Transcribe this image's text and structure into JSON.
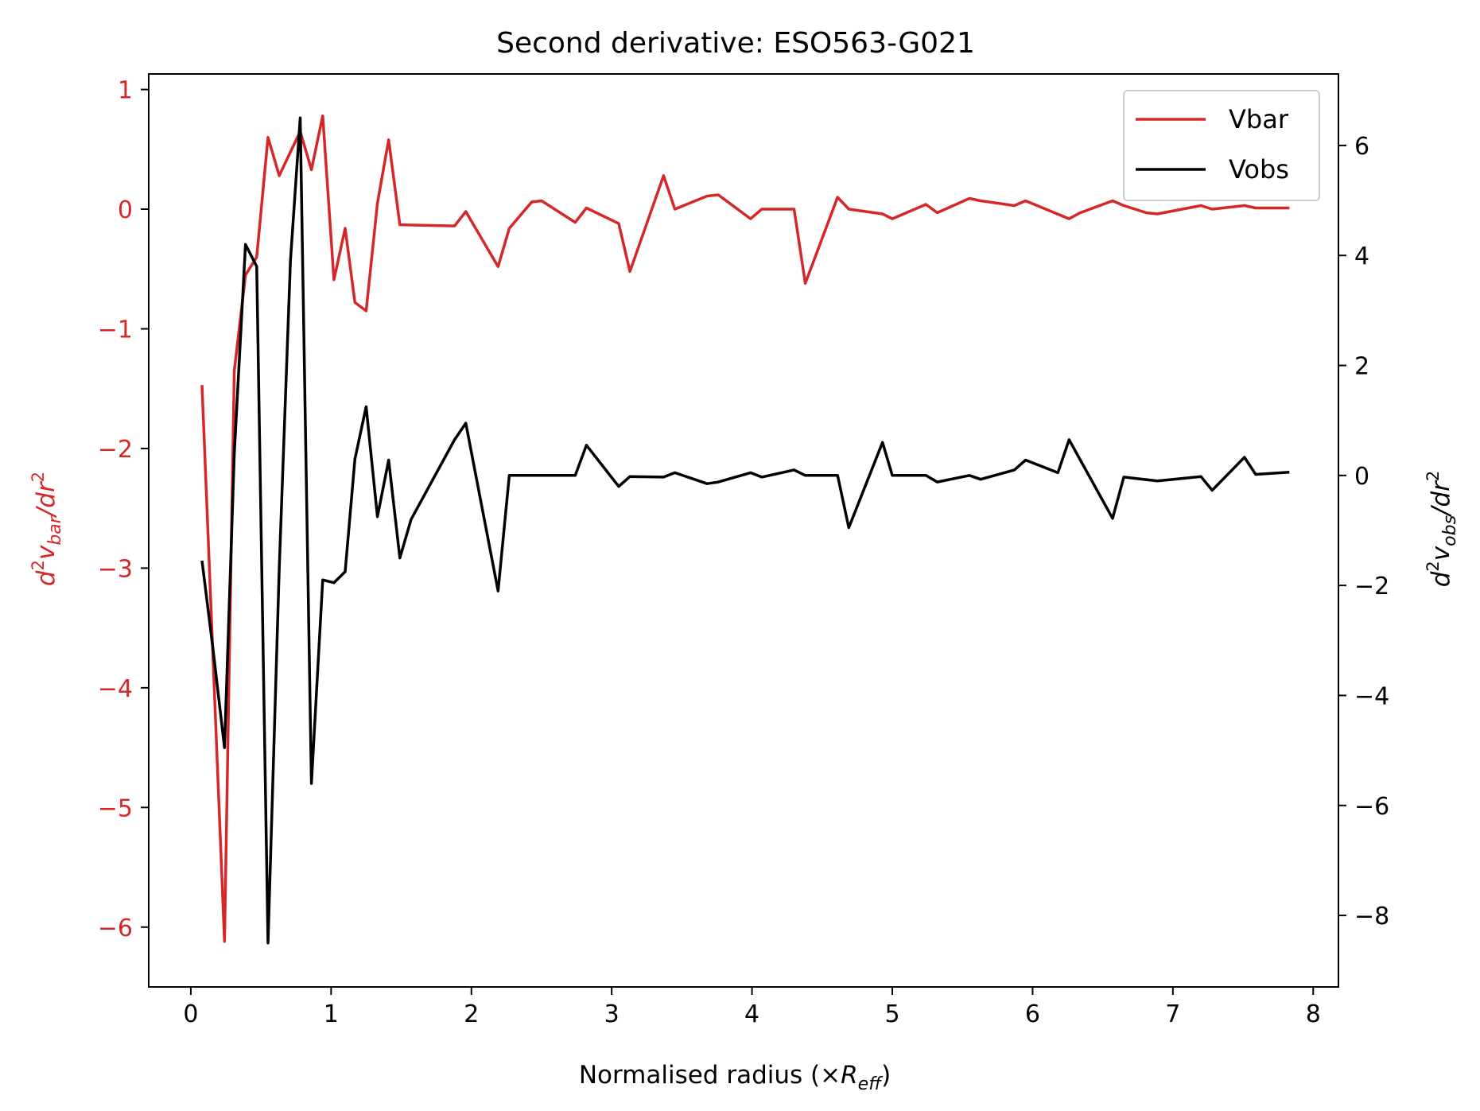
{
  "chart_data": {
    "type": "line",
    "title": "Second derivative: ESO563-G021",
    "xlabel": {
      "main": "Normalised radius (×",
      "var": "R",
      "sub": "eff",
      "close": ")"
    },
    "ylabel_left": {
      "a": "d",
      "sup1": "2",
      "b": "v",
      "sub": "bar",
      "c": "/dr",
      "sup2": "2"
    },
    "ylabel_right": {
      "a": "d",
      "sup1": "2",
      "b": "v",
      "sub": "obs",
      "c": "/dr",
      "sup2": "2"
    },
    "xlim": [
      -0.3,
      8.18
    ],
    "ylim_left": [
      -6.5,
      1.13
    ],
    "ylim_right": [
      -9.3,
      7.3
    ],
    "x_ticks": [
      "0",
      "1",
      "2",
      "3",
      "4",
      "5",
      "6",
      "7",
      "8"
    ],
    "y_left_ticks": [
      "1",
      "0",
      "−1",
      "−2",
      "−3",
      "−4",
      "−5",
      "−6"
    ],
    "y_right_ticks": [
      "6",
      "4",
      "2",
      "0",
      "−2",
      "−4",
      "−6",
      "−8"
    ],
    "legend_position": "top-right",
    "colors": {
      "vbar": "#d62728",
      "vobs": "#000000",
      "left_axis": "#d62728"
    },
    "series": [
      {
        "name": "Vbar",
        "axis": "left",
        "x": [
          0.08,
          0.24,
          0.31,
          0.39,
          0.47,
          0.55,
          0.63,
          0.78,
          0.86,
          0.94,
          1.02,
          1.1,
          1.17,
          1.25,
          1.33,
          1.41,
          1.49,
          1.88,
          1.96,
          2.19,
          2.27,
          2.43,
          2.5,
          2.74,
          2.82,
          3.05,
          3.13,
          3.37,
          3.45,
          3.68,
          3.76,
          3.99,
          4.07,
          4.3,
          4.38,
          4.61,
          4.69,
          4.93,
          5.0,
          5.24,
          5.32,
          5.55,
          5.63,
          5.87,
          5.95,
          6.26,
          6.34,
          6.57,
          6.65,
          6.81,
          6.89,
          7.2,
          7.28,
          7.51,
          7.59,
          7.75,
          7.83
        ],
        "values": [
          -1.47,
          -6.12,
          -1.35,
          -0.55,
          -0.4,
          0.6,
          0.28,
          0.65,
          0.33,
          0.78,
          -0.59,
          -0.16,
          -0.78,
          -0.85,
          0.05,
          0.58,
          -0.13,
          -0.14,
          -0.02,
          -0.48,
          -0.16,
          0.06,
          0.07,
          -0.11,
          0.01,
          -0.12,
          -0.52,
          0.28,
          0.0,
          0.11,
          0.12,
          -0.08,
          0.0,
          0.0,
          -0.62,
          0.1,
          0.0,
          -0.04,
          -0.08,
          0.04,
          -0.03,
          0.09,
          0.07,
          0.03,
          0.07,
          -0.08,
          -0.03,
          0.07,
          0.03,
          -0.03,
          -0.04,
          0.03,
          0.0,
          0.03,
          0.01,
          0.01,
          0.01
        ]
      },
      {
        "name": "Vobs",
        "axis": "right",
        "x": [
          0.08,
          0.16,
          0.24,
          0.31,
          0.39,
          0.47,
          0.55,
          0.63,
          0.71,
          0.78,
          0.86,
          0.94,
          1.02,
          1.1,
          1.17,
          1.25,
          1.33,
          1.41,
          1.49,
          1.57,
          1.88,
          1.96,
          2.19,
          2.27,
          2.43,
          2.74,
          2.82,
          3.05,
          3.13,
          3.37,
          3.45,
          3.68,
          3.76,
          3.99,
          4.07,
          4.3,
          4.38,
          4.61,
          4.69,
          4.93,
          5.0,
          5.24,
          5.32,
          5.55,
          5.63,
          5.87,
          5.95,
          6.18,
          6.26,
          6.57,
          6.65,
          6.89,
          7.2,
          7.28,
          7.51,
          7.59,
          7.83
        ],
        "values": [
          -1.55,
          -3.2,
          -4.95,
          0.4,
          4.2,
          3.8,
          -8.5,
          -1.7,
          3.9,
          6.5,
          -5.6,
          -1.9,
          -1.95,
          -1.75,
          0.3,
          1.25,
          -0.75,
          0.28,
          -1.5,
          -0.8,
          0.65,
          0.95,
          -2.1,
          0.0,
          0.0,
          0.0,
          0.55,
          -0.2,
          -0.02,
          -0.03,
          0.05,
          -0.15,
          -0.12,
          0.05,
          -0.03,
          0.1,
          0.0,
          0.0,
          -0.95,
          0.6,
          0.0,
          0.0,
          -0.12,
          0.0,
          -0.07,
          0.1,
          0.28,
          0.05,
          0.65,
          -0.78,
          -0.03,
          -0.1,
          -0.02,
          -0.27,
          0.33,
          0.02,
          0.06
        ]
      }
    ]
  }
}
